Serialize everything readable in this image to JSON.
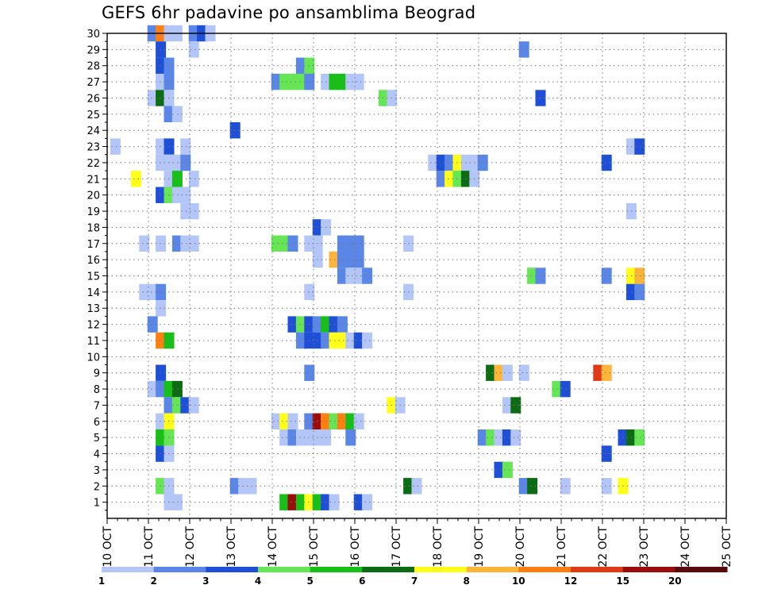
{
  "chart_data": {
    "type": "heatmap",
    "title": "GEFS 6hr padavine po ansamblima Beograd",
    "xlabel": "",
    "ylabel": "",
    "x_tick_labels": [
      "10 OCT",
      "11 OCT",
      "12 OCT",
      "13 OCT",
      "14 OCT",
      "15 OCT",
      "16 OCT",
      "17 OCT",
      "18 OCT",
      "19 OCT",
      "20 OCT",
      "21 OCT",
      "22 OCT",
      "23 OCT",
      "24 OCT",
      "25 OCT"
    ],
    "x_range_days": [
      0,
      15
    ],
    "y_tick_labels": [
      "1",
      "2",
      "3",
      "4",
      "5",
      "6",
      "7",
      "8",
      "9",
      "10",
      "11",
      "12",
      "13",
      "14",
      "15",
      "16",
      "17",
      "18",
      "19",
      "20",
      "21",
      "22",
      "23",
      "24",
      "25",
      "26",
      "27",
      "28",
      "29",
      "30"
    ],
    "y_range": [
      0,
      30
    ],
    "grid": true,
    "colorbar": {
      "placement": "bottom",
      "labels": [
        "1",
        "2",
        "3",
        "4",
        "5",
        "6",
        "7",
        "8",
        "10",
        "12",
        "15",
        "20"
      ],
      "colors": [
        "#b3c6f7",
        "#5a86e8",
        "#1f4fd6",
        "#66e655",
        "#17bf17",
        "#0d6b14",
        "#ffff1a",
        "#ffb43a",
        "#ff7f12",
        "#e03a14",
        "#9a0d0d",
        "#5a0a0a"
      ]
    },
    "points": [
      {
        "x": 0.2,
        "y": 23,
        "c": 0
      },
      {
        "x": 0.7,
        "y": 21,
        "c": 6
      },
      {
        "x": 0.9,
        "y": 17,
        "c": 0
      },
      {
        "x": 0.9,
        "y": 14,
        "c": 0
      },
      {
        "x": 1.1,
        "y": 30,
        "c": 1
      },
      {
        "x": 1.1,
        "y": 26,
        "c": 0
      },
      {
        "x": 1.1,
        "y": 14,
        "c": 0
      },
      {
        "x": 1.1,
        "y": 12,
        "c": 1
      },
      {
        "x": 1.1,
        "y": 8,
        "c": 0
      },
      {
        "x": 1.3,
        "y": 30,
        "c": 8
      },
      {
        "x": 1.3,
        "y": 29,
        "c": 2
      },
      {
        "x": 1.3,
        "y": 28,
        "c": 2
      },
      {
        "x": 1.3,
        "y": 27,
        "c": 0
      },
      {
        "x": 1.3,
        "y": 26,
        "c": 5
      },
      {
        "x": 1.3,
        "y": 23,
        "c": 0
      },
      {
        "x": 1.3,
        "y": 22,
        "c": 0
      },
      {
        "x": 1.3,
        "y": 20,
        "c": 2
      },
      {
        "x": 1.3,
        "y": 17,
        "c": 0
      },
      {
        "x": 1.3,
        "y": 14,
        "c": 1
      },
      {
        "x": 1.3,
        "y": 13,
        "c": 0
      },
      {
        "x": 1.3,
        "y": 11,
        "c": 8
      },
      {
        "x": 1.3,
        "y": 9,
        "c": 2
      },
      {
        "x": 1.3,
        "y": 8,
        "c": 1
      },
      {
        "x": 1.3,
        "y": 6,
        "c": 0
      },
      {
        "x": 1.3,
        "y": 5,
        "c": 4
      },
      {
        "x": 1.3,
        "y": 4,
        "c": 2
      },
      {
        "x": 1.3,
        "y": 2,
        "c": 3
      },
      {
        "x": 1.5,
        "y": 30,
        "c": 0
      },
      {
        "x": 1.5,
        "y": 28,
        "c": 1
      },
      {
        "x": 1.5,
        "y": 27,
        "c": 1
      },
      {
        "x": 1.5,
        "y": 26,
        "c": 0
      },
      {
        "x": 1.5,
        "y": 25,
        "c": 1
      },
      {
        "x": 1.5,
        "y": 23,
        "c": 2
      },
      {
        "x": 1.5,
        "y": 22,
        "c": 0
      },
      {
        "x": 1.5,
        "y": 21,
        "c": 0
      },
      {
        "x": 1.5,
        "y": 20,
        "c": 3
      },
      {
        "x": 1.5,
        "y": 11,
        "c": 4
      },
      {
        "x": 1.5,
        "y": 8,
        "c": 4
      },
      {
        "x": 1.5,
        "y": 7,
        "c": 1
      },
      {
        "x": 1.5,
        "y": 6,
        "c": 6
      },
      {
        "x": 1.5,
        "y": 5,
        "c": 3
      },
      {
        "x": 1.5,
        "y": 4,
        "c": 0
      },
      {
        "x": 1.5,
        "y": 2,
        "c": 0
      },
      {
        "x": 1.5,
        "y": 1,
        "c": 0
      },
      {
        "x": 1.7,
        "y": 30,
        "c": 0
      },
      {
        "x": 1.7,
        "y": 25,
        "c": 0
      },
      {
        "x": 1.7,
        "y": 22,
        "c": 0
      },
      {
        "x": 1.7,
        "y": 21,
        "c": 4
      },
      {
        "x": 1.7,
        "y": 20,
        "c": 0
      },
      {
        "x": 1.7,
        "y": 17,
        "c": 1
      },
      {
        "x": 1.7,
        "y": 8,
        "c": 5
      },
      {
        "x": 1.7,
        "y": 7,
        "c": 3
      },
      {
        "x": 1.7,
        "y": 1,
        "c": 0
      },
      {
        "x": 1.9,
        "y": 23,
        "c": 0
      },
      {
        "x": 1.9,
        "y": 22,
        "c": 1
      },
      {
        "x": 1.9,
        "y": 20,
        "c": 0
      },
      {
        "x": 1.9,
        "y": 19,
        "c": 0
      },
      {
        "x": 1.9,
        "y": 17,
        "c": 0
      },
      {
        "x": 1.9,
        "y": 7,
        "c": 2
      },
      {
        "x": 2.1,
        "y": 30,
        "c": 1
      },
      {
        "x": 2.1,
        "y": 29,
        "c": 0
      },
      {
        "x": 2.1,
        "y": 21,
        "c": 0
      },
      {
        "x": 2.1,
        "y": 19,
        "c": 0
      },
      {
        "x": 2.1,
        "y": 17,
        "c": 0
      },
      {
        "x": 2.1,
        "y": 7,
        "c": 0
      },
      {
        "x": 2.3,
        "y": 30,
        "c": 2
      },
      {
        "x": 2.5,
        "y": 30,
        "c": 0
      },
      {
        "x": 3.1,
        "y": 24,
        "c": 2
      },
      {
        "x": 3.1,
        "y": 2,
        "c": 1
      },
      {
        "x": 3.3,
        "y": 2,
        "c": 0
      },
      {
        "x": 3.5,
        "y": 2,
        "c": 0
      },
      {
        "x": 4.1,
        "y": 27,
        "c": 1
      },
      {
        "x": 4.1,
        "y": 17,
        "c": 3
      },
      {
        "x": 4.1,
        "y": 6,
        "c": 0
      },
      {
        "x": 4.3,
        "y": 27,
        "c": 3
      },
      {
        "x": 4.3,
        "y": 17,
        "c": 3
      },
      {
        "x": 4.3,
        "y": 6,
        "c": 6
      },
      {
        "x": 4.3,
        "y": 5,
        "c": 0
      },
      {
        "x": 4.3,
        "y": 1,
        "c": 4
      },
      {
        "x": 4.5,
        "y": 27,
        "c": 3
      },
      {
        "x": 4.5,
        "y": 17,
        "c": 1
      },
      {
        "x": 4.5,
        "y": 12,
        "c": 2
      },
      {
        "x": 4.5,
        "y": 6,
        "c": 0
      },
      {
        "x": 4.5,
        "y": 5,
        "c": 1
      },
      {
        "x": 4.5,
        "y": 1,
        "c": 10
      },
      {
        "x": 4.7,
        "y": 28,
        "c": 1
      },
      {
        "x": 4.7,
        "y": 27,
        "c": 3
      },
      {
        "x": 4.7,
        "y": 12,
        "c": 3
      },
      {
        "x": 4.7,
        "y": 11,
        "c": 1
      },
      {
        "x": 4.7,
        "y": 5,
        "c": 0
      },
      {
        "x": 4.7,
        "y": 1,
        "c": 4
      },
      {
        "x": 4.9,
        "y": 28,
        "c": 3
      },
      {
        "x": 4.9,
        "y": 27,
        "c": 1
      },
      {
        "x": 4.9,
        "y": 17,
        "c": 0
      },
      {
        "x": 4.9,
        "y": 14,
        "c": 0
      },
      {
        "x": 4.9,
        "y": 12,
        "c": 2
      },
      {
        "x": 4.9,
        "y": 11,
        "c": 2
      },
      {
        "x": 4.9,
        "y": 9,
        "c": 1
      },
      {
        "x": 4.9,
        "y": 6,
        "c": 1
      },
      {
        "x": 4.9,
        "y": 5,
        "c": 0
      },
      {
        "x": 4.9,
        "y": 1,
        "c": 6
      },
      {
        "x": 5.1,
        "y": 18,
        "c": 2
      },
      {
        "x": 5.1,
        "y": 17,
        "c": 0
      },
      {
        "x": 5.1,
        "y": 16,
        "c": 0
      },
      {
        "x": 5.1,
        "y": 12,
        "c": 1
      },
      {
        "x": 5.1,
        "y": 11,
        "c": 2
      },
      {
        "x": 5.1,
        "y": 6,
        "c": 10
      },
      {
        "x": 5.1,
        "y": 5,
        "c": 0
      },
      {
        "x": 5.1,
        "y": 1,
        "c": 4
      },
      {
        "x": 5.3,
        "y": 27,
        "c": 0
      },
      {
        "x": 5.3,
        "y": 18,
        "c": 0
      },
      {
        "x": 5.3,
        "y": 12,
        "c": 4
      },
      {
        "x": 5.3,
        "y": 11,
        "c": 1
      },
      {
        "x": 5.3,
        "y": 6,
        "c": 8
      },
      {
        "x": 5.3,
        "y": 5,
        "c": 0
      },
      {
        "x": 5.3,
        "y": 1,
        "c": 2
      },
      {
        "x": 5.5,
        "y": 27,
        "c": 4
      },
      {
        "x": 5.5,
        "y": 16,
        "c": 7
      },
      {
        "x": 5.5,
        "y": 12,
        "c": 2
      },
      {
        "x": 5.5,
        "y": 11,
        "c": 6
      },
      {
        "x": 5.5,
        "y": 6,
        "c": 3
      },
      {
        "x": 5.5,
        "y": 1,
        "c": 0
      },
      {
        "x": 5.7,
        "y": 27,
        "c": 4
      },
      {
        "x": 5.7,
        "y": 17,
        "c": 1
      },
      {
        "x": 5.7,
        "y": 16,
        "c": 1
      },
      {
        "x": 5.7,
        "y": 15,
        "c": 1
      },
      {
        "x": 5.7,
        "y": 12,
        "c": 1
      },
      {
        "x": 5.7,
        "y": 11,
        "c": 6
      },
      {
        "x": 5.7,
        "y": 6,
        "c": 8
      },
      {
        "x": 5.9,
        "y": 27,
        "c": 0
      },
      {
        "x": 5.9,
        "y": 17,
        "c": 1
      },
      {
        "x": 5.9,
        "y": 16,
        "c": 1
      },
      {
        "x": 5.9,
        "y": 15,
        "c": 0
      },
      {
        "x": 5.9,
        "y": 11,
        "c": 0
      },
      {
        "x": 5.9,
        "y": 6,
        "c": 4
      },
      {
        "x": 5.9,
        "y": 5,
        "c": 1
      },
      {
        "x": 6.1,
        "y": 27,
        "c": 0
      },
      {
        "x": 6.1,
        "y": 17,
        "c": 1
      },
      {
        "x": 6.1,
        "y": 16,
        "c": 1
      },
      {
        "x": 6.1,
        "y": 15,
        "c": 0
      },
      {
        "x": 6.1,
        "y": 11,
        "c": 2
      },
      {
        "x": 6.1,
        "y": 6,
        "c": 0
      },
      {
        "x": 6.1,
        "y": 1,
        "c": 2
      },
      {
        "x": 6.3,
        "y": 15,
        "c": 1
      },
      {
        "x": 6.3,
        "y": 11,
        "c": 0
      },
      {
        "x": 6.3,
        "y": 1,
        "c": 0
      },
      {
        "x": 6.7,
        "y": 26,
        "c": 3
      },
      {
        "x": 6.9,
        "y": 26,
        "c": 0
      },
      {
        "x": 6.9,
        "y": 7,
        "c": 6
      },
      {
        "x": 7.1,
        "y": 7,
        "c": 0
      },
      {
        "x": 7.3,
        "y": 17,
        "c": 0
      },
      {
        "x": 7.3,
        "y": 14,
        "c": 0
      },
      {
        "x": 7.3,
        "y": 2,
        "c": 5
      },
      {
        "x": 7.5,
        "y": 2,
        "c": 0
      },
      {
        "x": 7.9,
        "y": 22,
        "c": 0
      },
      {
        "x": 8.1,
        "y": 22,
        "c": 2
      },
      {
        "x": 8.1,
        "y": 21,
        "c": 1
      },
      {
        "x": 8.3,
        "y": 22,
        "c": 1
      },
      {
        "x": 8.3,
        "y": 21,
        "c": 6
      },
      {
        "x": 8.5,
        "y": 22,
        "c": 6
      },
      {
        "x": 8.5,
        "y": 21,
        "c": 3
      },
      {
        "x": 8.7,
        "y": 22,
        "c": 0
      },
      {
        "x": 8.7,
        "y": 21,
        "c": 5
      },
      {
        "x": 8.9,
        "y": 22,
        "c": 0
      },
      {
        "x": 8.9,
        "y": 21,
        "c": 0
      },
      {
        "x": 9.1,
        "y": 22,
        "c": 1
      },
      {
        "x": 9.1,
        "y": 5,
        "c": 1
      },
      {
        "x": 9.3,
        "y": 9,
        "c": 5
      },
      {
        "x": 9.3,
        "y": 5,
        "c": 3
      },
      {
        "x": 9.5,
        "y": 9,
        "c": 7
      },
      {
        "x": 9.5,
        "y": 5,
        "c": 0
      },
      {
        "x": 9.5,
        "y": 3,
        "c": 2
      },
      {
        "x": 9.7,
        "y": 9,
        "c": 0
      },
      {
        "x": 9.7,
        "y": 7,
        "c": 0
      },
      {
        "x": 9.7,
        "y": 5,
        "c": 2
      },
      {
        "x": 9.7,
        "y": 3,
        "c": 3
      },
      {
        "x": 9.9,
        "y": 7,
        "c": 5
      },
      {
        "x": 9.9,
        "y": 5,
        "c": 0
      },
      {
        "x": 10.1,
        "y": 29,
        "c": 1
      },
      {
        "x": 10.1,
        "y": 9,
        "c": 0
      },
      {
        "x": 10.1,
        "y": 2,
        "c": 1
      },
      {
        "x": 10.3,
        "y": 15,
        "c": 3
      },
      {
        "x": 10.3,
        "y": 2,
        "c": 5
      },
      {
        "x": 10.5,
        "y": 15,
        "c": 1
      },
      {
        "x": 10.5,
        "y": 26,
        "c": 2
      },
      {
        "x": 10.9,
        "y": 8,
        "c": 3
      },
      {
        "x": 11.1,
        "y": 8,
        "c": 2
      },
      {
        "x": 11.1,
        "y": 2,
        "c": 0
      },
      {
        "x": 11.9,
        "y": 9,
        "c": 9
      },
      {
        "x": 12.1,
        "y": 9,
        "c": 7
      },
      {
        "x": 12.1,
        "y": 22,
        "c": 2
      },
      {
        "x": 12.1,
        "y": 15,
        "c": 1
      },
      {
        "x": 12.1,
        "y": 4,
        "c": 2
      },
      {
        "x": 12.1,
        "y": 2,
        "c": 0
      },
      {
        "x": 12.5,
        "y": 5,
        "c": 2
      },
      {
        "x": 12.5,
        "y": 2,
        "c": 6
      },
      {
        "x": 12.7,
        "y": 23,
        "c": 0
      },
      {
        "x": 12.7,
        "y": 19,
        "c": 0
      },
      {
        "x": 12.7,
        "y": 15,
        "c": 6
      },
      {
        "x": 12.7,
        "y": 14,
        "c": 2
      },
      {
        "x": 12.7,
        "y": 5,
        "c": 5
      },
      {
        "x": 12.9,
        "y": 23,
        "c": 2
      },
      {
        "x": 12.9,
        "y": 15,
        "c": 7
      },
      {
        "x": 12.9,
        "y": 14,
        "c": 1
      },
      {
        "x": 12.9,
        "y": 5,
        "c": 3
      }
    ]
  }
}
